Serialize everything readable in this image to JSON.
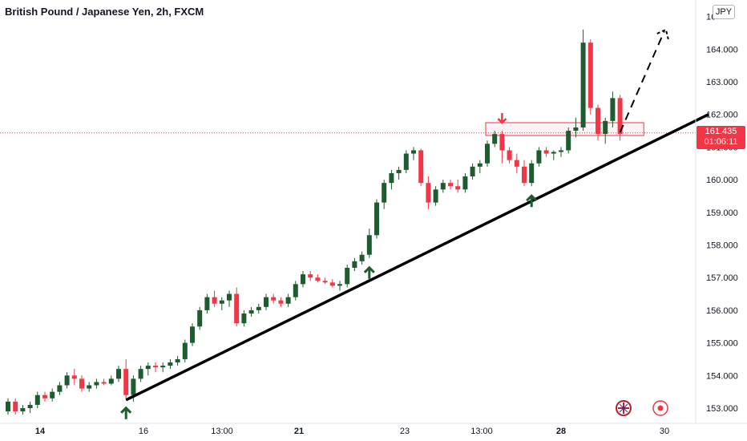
{
  "header": {
    "title": "British Pound / Japanese Yen, 2h, FXCM"
  },
  "currency_badge": "JPY",
  "last_price": {
    "value": "161.435",
    "countdown": "01:06:11"
  },
  "colors": {
    "up": "#1e5b2e",
    "down": "#f23645",
    "trendline": "#000000",
    "marker_green": "#1e5b2e",
    "marker_red": "#f23645",
    "axis_text": "#131722"
  },
  "icons": [
    "flag-uk-icon",
    "record-icon"
  ],
  "chart_data": {
    "type": "candlestick",
    "ylim": [
      152.75,
      165.0
    ],
    "y_ticks": [
      "153.000",
      "154.000",
      "155.000",
      "156.000",
      "157.000",
      "158.000",
      "159.000",
      "160.000",
      "161.000",
      "162.000",
      "163.000",
      "164.000",
      "16"
    ],
    "x_ticks": [
      "14",
      "16",
      "13:00",
      "21",
      "23",
      "13:00",
      "28",
      "30"
    ],
    "candles": [
      [
        152.9,
        153.3,
        152.8,
        153.2
      ],
      [
        153.2,
        153.3,
        152.8,
        152.9
      ],
      [
        152.9,
        153.1,
        152.8,
        153.0
      ],
      [
        153.0,
        153.2,
        152.85,
        153.1
      ],
      [
        153.1,
        153.5,
        153.0,
        153.4
      ],
      [
        153.4,
        153.5,
        153.2,
        153.3
      ],
      [
        153.3,
        153.6,
        153.2,
        153.5
      ],
      [
        153.5,
        153.8,
        153.4,
        153.7
      ],
      [
        153.7,
        154.1,
        153.6,
        154.0
      ],
      [
        154.0,
        154.2,
        153.7,
        153.9
      ],
      [
        153.9,
        154.0,
        153.5,
        153.6
      ],
      [
        153.6,
        153.8,
        153.5,
        153.7
      ],
      [
        153.7,
        153.9,
        153.6,
        153.8
      ],
      [
        153.8,
        153.9,
        153.7,
        153.75
      ],
      [
        153.75,
        154.0,
        153.7,
        153.9
      ],
      [
        153.9,
        154.3,
        153.8,
        154.2
      ],
      [
        154.2,
        154.5,
        153.3,
        153.4
      ],
      [
        153.4,
        154.0,
        153.2,
        153.9
      ],
      [
        153.9,
        154.3,
        153.8,
        154.2
      ],
      [
        154.2,
        154.4,
        154.0,
        154.3
      ],
      [
        154.3,
        154.4,
        154.1,
        154.25
      ],
      [
        154.25,
        154.4,
        154.1,
        154.3
      ],
      [
        154.3,
        154.5,
        154.2,
        154.4
      ],
      [
        154.4,
        154.6,
        154.3,
        154.5
      ],
      [
        154.5,
        155.1,
        154.4,
        155.0
      ],
      [
        155.0,
        155.6,
        154.9,
        155.5
      ],
      [
        155.5,
        156.1,
        155.4,
        156.0
      ],
      [
        156.0,
        156.5,
        155.9,
        156.4
      ],
      [
        156.4,
        156.6,
        156.1,
        156.2
      ],
      [
        156.2,
        156.4,
        156.0,
        156.3
      ],
      [
        156.3,
        156.6,
        156.1,
        156.5
      ],
      [
        156.5,
        156.7,
        155.5,
        155.6
      ],
      [
        155.6,
        156.0,
        155.5,
        155.9
      ],
      [
        155.9,
        156.1,
        155.8,
        156.0
      ],
      [
        156.0,
        156.2,
        155.9,
        156.1
      ],
      [
        156.1,
        156.5,
        156.0,
        156.4
      ],
      [
        156.4,
        156.5,
        156.2,
        156.3
      ],
      [
        156.3,
        156.4,
        156.1,
        156.2
      ],
      [
        156.2,
        156.5,
        156.1,
        156.4
      ],
      [
        156.4,
        156.9,
        156.3,
        156.8
      ],
      [
        156.8,
        157.2,
        156.7,
        157.1
      ],
      [
        157.1,
        157.2,
        156.9,
        157.0
      ],
      [
        157.0,
        157.1,
        156.85,
        156.9
      ],
      [
        156.9,
        157.0,
        156.8,
        156.85
      ],
      [
        156.85,
        156.95,
        156.7,
        156.75
      ],
      [
        156.75,
        156.9,
        156.6,
        156.8
      ],
      [
        156.8,
        157.4,
        156.7,
        157.3
      ],
      [
        157.3,
        157.6,
        157.2,
        157.5
      ],
      [
        157.5,
        157.8,
        157.4,
        157.7
      ],
      [
        157.7,
        158.5,
        157.6,
        158.3
      ],
      [
        158.3,
        159.4,
        158.2,
        159.3
      ],
      [
        159.3,
        160.0,
        159.1,
        159.9
      ],
      [
        159.9,
        160.3,
        159.7,
        160.2
      ],
      [
        160.2,
        160.4,
        160.0,
        160.3
      ],
      [
        160.3,
        160.9,
        160.2,
        160.8
      ],
      [
        160.8,
        161.0,
        160.6,
        160.9
      ],
      [
        160.9,
        160.95,
        159.8,
        159.9
      ],
      [
        159.9,
        160.1,
        159.1,
        159.3
      ],
      [
        159.3,
        159.8,
        159.2,
        159.7
      ],
      [
        159.7,
        160.0,
        159.6,
        159.9
      ],
      [
        159.9,
        160.0,
        159.7,
        159.8
      ],
      [
        159.8,
        160.0,
        159.6,
        159.7
      ],
      [
        159.7,
        160.2,
        159.6,
        160.1
      ],
      [
        160.1,
        160.5,
        160.0,
        160.4
      ],
      [
        160.4,
        160.6,
        160.2,
        160.5
      ],
      [
        160.5,
        161.2,
        160.4,
        161.1
      ],
      [
        161.1,
        161.5,
        161.0,
        161.4
      ],
      [
        161.4,
        161.5,
        160.5,
        160.9
      ],
      [
        160.9,
        161.0,
        160.5,
        160.6
      ],
      [
        160.6,
        160.8,
        160.2,
        160.4
      ],
      [
        160.4,
        160.6,
        159.8,
        159.9
      ],
      [
        159.9,
        160.6,
        159.8,
        160.5
      ],
      [
        160.5,
        161.0,
        160.4,
        160.9
      ],
      [
        160.9,
        161.0,
        160.7,
        160.8
      ],
      [
        160.8,
        160.9,
        160.6,
        160.85
      ],
      [
        160.85,
        161.0,
        160.7,
        160.9
      ],
      [
        160.9,
        161.6,
        160.8,
        161.5
      ],
      [
        161.5,
        161.9,
        161.3,
        161.6
      ],
      [
        161.6,
        164.6,
        161.5,
        164.2
      ],
      [
        164.2,
        164.3,
        162.0,
        162.2
      ],
      [
        162.2,
        162.3,
        161.2,
        161.4
      ],
      [
        161.4,
        161.9,
        161.1,
        161.8
      ],
      [
        161.8,
        162.7,
        161.6,
        162.5
      ],
      [
        162.5,
        162.6,
        161.2,
        161.4
      ]
    ],
    "annotations": {
      "trendline": {
        "from": [
          16,
          153.25
        ],
        "to": [
          95,
          162.0
        ]
      },
      "support_markers_at_candle": [
        16,
        49,
        71
      ],
      "resistance_marker_at_candle": 67,
      "resistance_zone": [
        161.35,
        161.55
      ],
      "projection": {
        "from": [
          83,
          161.45
        ],
        "to": [
          89,
          164.55
        ]
      }
    }
  }
}
